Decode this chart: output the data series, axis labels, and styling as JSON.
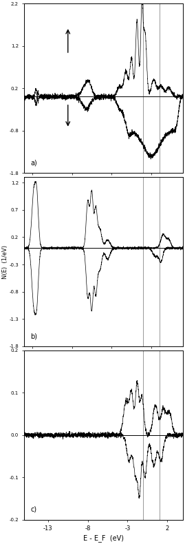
{
  "xlim": [
    -16,
    4
  ],
  "x_ticks": [
    -13,
    -8,
    -3,
    2
  ],
  "vline_x1": -1.0,
  "vline_x2": 1.0,
  "xlabel": "E - E_F  (eV)",
  "ylabel": "N(E)  (1/eV)",
  "panels": [
    {
      "label": "a)",
      "ylim": [
        -1.8,
        2.2
      ],
      "yticks": [
        -1.8,
        -0.8,
        0.2,
        1.2,
        2.2
      ],
      "yticklabels": [
        "-1.8",
        "-0.8",
        "0.2",
        "1.2",
        "2.2"
      ]
    },
    {
      "label": "b)",
      "ylim": [
        -1.8,
        1.3
      ],
      "yticks": [
        -1.8,
        -1.3,
        -0.8,
        -0.3,
        0.2,
        0.7,
        1.2
      ],
      "yticklabels": [
        "-1.8",
        "-1.3",
        "-0.8",
        "-0.3",
        "0.2",
        "0.7",
        "1.2"
      ]
    },
    {
      "label": "c)",
      "ylim": [
        -0.2,
        0.2
      ],
      "yticks": [
        -0.2,
        -0.1,
        0.0,
        0.1,
        0.2
      ],
      "yticklabels": [
        "-0.2",
        "-0.1",
        "0.0",
        "0.1",
        "0.2"
      ]
    }
  ],
  "background_color": "#ffffff",
  "seed": 42
}
